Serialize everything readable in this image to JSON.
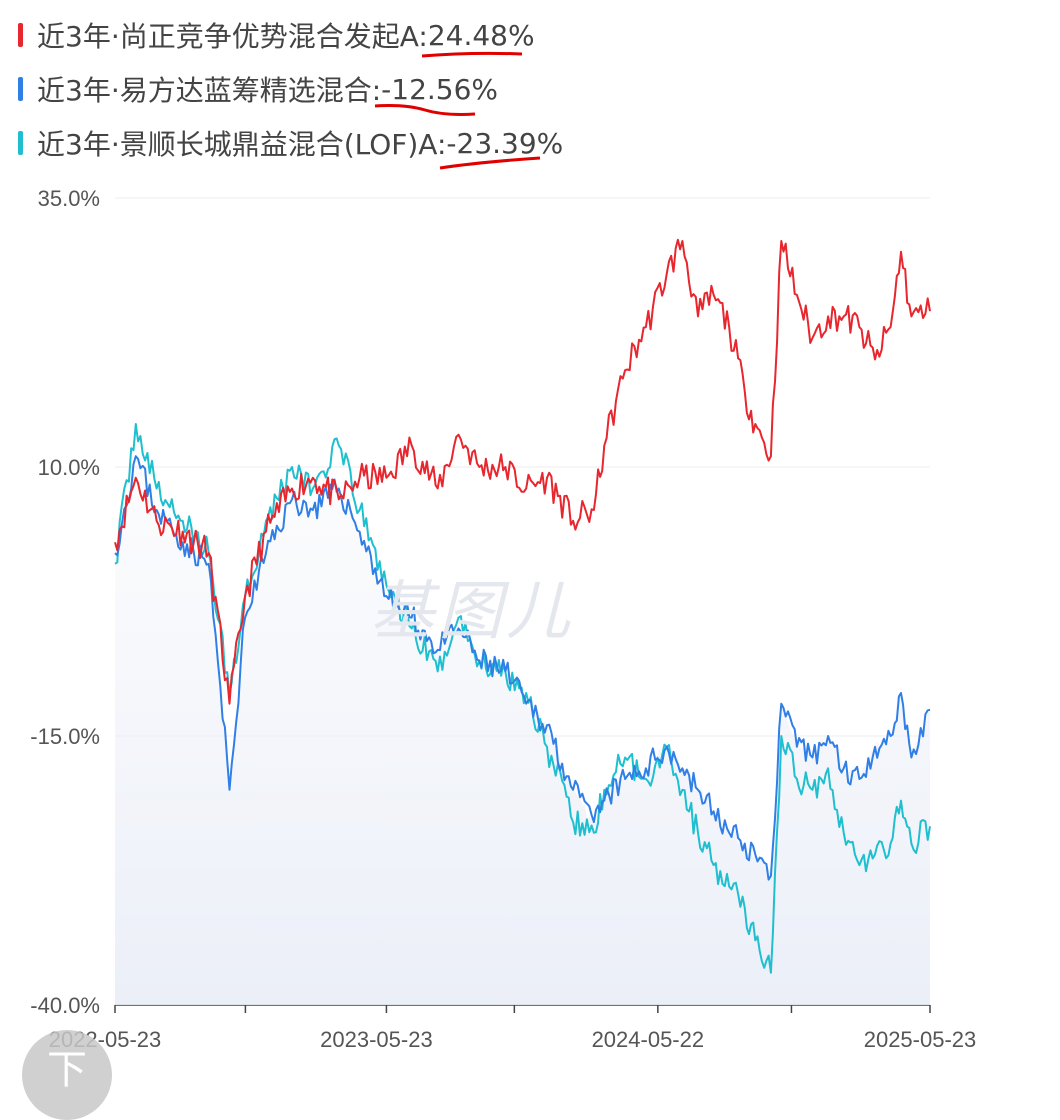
{
  "legend": [
    {
      "label": "近3年·尚正竞争优势混合发起A:",
      "value": "24.48%",
      "color": "#e8262e"
    },
    {
      "label": "近3年·易方达蓝筹精选混合:",
      "value": "-12.56%",
      "color": "#2f7fe6"
    },
    {
      "label": "近3年·景顺长城鼎益混合(LOF)A:",
      "value": "-23.39%",
      "color": "#1fbfcf"
    }
  ],
  "watermark": "基图儿",
  "scroll_button": {
    "glyph": "下"
  },
  "chart_data": {
    "type": "line",
    "ylim": [
      -40,
      35
    ],
    "y_ticks": [
      "35.0%",
      "10.0%",
      "-15.0%",
      "-40.0%"
    ],
    "y_tick_values": [
      35,
      10,
      -15,
      -40
    ],
    "x_range": [
      "2022-05-23",
      "2025-05-23"
    ],
    "x_ticks": [
      "2022-05-23",
      "2023-05-23",
      "2024-05-22",
      "2025-05-23"
    ],
    "grid": true,
    "series": [
      {
        "name": "近3年·尚正竞争优势混合发起A",
        "color": "#e8262e",
        "points": [
          [
            "2022-05-23",
            3
          ],
          [
            "2022-06-20",
            9
          ],
          [
            "2022-07-18",
            5
          ],
          [
            "2022-08-22",
            4
          ],
          [
            "2022-09-26",
            2
          ],
          [
            "2022-10-24",
            -12
          ],
          [
            "2022-11-14",
            -2
          ],
          [
            "2022-12-12",
            4
          ],
          [
            "2023-01-16",
            8
          ],
          [
            "2023-02-13",
            9
          ],
          [
            "2023-03-20",
            7
          ],
          [
            "2023-04-17",
            9
          ],
          [
            "2023-05-23",
            9
          ],
          [
            "2023-06-26",
            12
          ],
          [
            "2023-07-31",
            8
          ],
          [
            "2023-08-28",
            13
          ],
          [
            "2023-09-25",
            10
          ],
          [
            "2023-10-30",
            10
          ],
          [
            "2023-11-27",
            8
          ],
          [
            "2023-12-25",
            9
          ],
          [
            "2024-01-29",
            5
          ],
          [
            "2024-02-26",
            6
          ],
          [
            "2024-03-11",
            12
          ],
          [
            "2024-04-08",
            19
          ],
          [
            "2024-05-06",
            23
          ],
          [
            "2024-06-03",
            28
          ],
          [
            "2024-06-24",
            31
          ],
          [
            "2024-07-15",
            24
          ],
          [
            "2024-08-05",
            26
          ],
          [
            "2024-08-26",
            23
          ],
          [
            "2024-09-16",
            17
          ],
          [
            "2024-09-30",
            14
          ],
          [
            "2024-10-21",
            11
          ],
          [
            "2024-11-04",
            31
          ],
          [
            "2024-11-25",
            26
          ],
          [
            "2024-12-16",
            22
          ],
          [
            "2025-01-06",
            24
          ],
          [
            "2025-01-27",
            24
          ],
          [
            "2025-02-17",
            23
          ],
          [
            "2025-03-10",
            20
          ],
          [
            "2025-03-31",
            23
          ],
          [
            "2025-04-14",
            30
          ],
          [
            "2025-04-28",
            24
          ],
          [
            "2025-05-23",
            24.48
          ]
        ]
      },
      {
        "name": "近3年·易方达蓝筹精选混合",
        "color": "#2f7fe6",
        "points": [
          [
            "2022-05-23",
            2
          ],
          [
            "2022-06-20",
            11
          ],
          [
            "2022-07-18",
            6
          ],
          [
            "2022-08-22",
            3
          ],
          [
            "2022-09-26",
            1
          ],
          [
            "2022-10-24",
            -20
          ],
          [
            "2022-11-14",
            -4
          ],
          [
            "2022-12-12",
            2
          ],
          [
            "2023-01-16",
            7
          ],
          [
            "2023-02-13",
            6
          ],
          [
            "2023-03-20",
            8
          ],
          [
            "2023-04-17",
            4
          ],
          [
            "2023-05-23",
            -2
          ],
          [
            "2023-06-26",
            -4
          ],
          [
            "2023-07-31",
            -7
          ],
          [
            "2023-08-28",
            -5
          ],
          [
            "2023-09-25",
            -8
          ],
          [
            "2023-10-30",
            -9
          ],
          [
            "2023-11-27",
            -12
          ],
          [
            "2023-12-25",
            -14
          ],
          [
            "2024-01-29",
            -20
          ],
          [
            "2024-02-26",
            -23
          ],
          [
            "2024-03-11",
            -21
          ],
          [
            "2024-04-08",
            -19
          ],
          [
            "2024-05-06",
            -18
          ],
          [
            "2024-06-03",
            -16
          ],
          [
            "2024-06-24",
            -18
          ],
          [
            "2024-07-15",
            -20
          ],
          [
            "2024-08-05",
            -22
          ],
          [
            "2024-08-26",
            -24
          ],
          [
            "2024-09-16",
            -25
          ],
          [
            "2024-09-30",
            -26
          ],
          [
            "2024-10-21",
            -28
          ],
          [
            "2024-11-04",
            -12
          ],
          [
            "2024-11-25",
            -16
          ],
          [
            "2024-12-16",
            -17
          ],
          [
            "2025-01-06",
            -15
          ],
          [
            "2025-01-27",
            -18
          ],
          [
            "2025-02-17",
            -19
          ],
          [
            "2025-03-10",
            -16
          ],
          [
            "2025-03-31",
            -15
          ],
          [
            "2025-04-14",
            -11
          ],
          [
            "2025-04-28",
            -17
          ],
          [
            "2025-05-23",
            -12.56
          ]
        ]
      },
      {
        "name": "近3年·景顺长城鼎益混合(LOF)A",
        "color": "#1fbfcf",
        "points": [
          [
            "2022-05-23",
            1
          ],
          [
            "2022-06-20",
            14
          ],
          [
            "2022-07-18",
            8
          ],
          [
            "2022-08-22",
            5
          ],
          [
            "2022-09-26",
            2
          ],
          [
            "2022-10-24",
            -11
          ],
          [
            "2022-11-14",
            -2
          ],
          [
            "2022-12-12",
            5
          ],
          [
            "2023-01-16",
            10
          ],
          [
            "2023-02-13",
            8
          ],
          [
            "2023-03-20",
            12
          ],
          [
            "2023-04-17",
            6
          ],
          [
            "2023-05-23",
            -1
          ],
          [
            "2023-06-26",
            -5
          ],
          [
            "2023-07-31",
            -9
          ],
          [
            "2023-08-28",
            -4
          ],
          [
            "2023-09-25",
            -8
          ],
          [
            "2023-10-30",
            -9
          ],
          [
            "2023-11-27",
            -11
          ],
          [
            "2023-12-25",
            -16
          ],
          [
            "2024-01-29",
            -23
          ],
          [
            "2024-02-26",
            -24
          ],
          [
            "2024-03-11",
            -20
          ],
          [
            "2024-04-08",
            -17
          ],
          [
            "2024-05-06",
            -19
          ],
          [
            "2024-06-03",
            -16
          ],
          [
            "2024-06-24",
            -20
          ],
          [
            "2024-07-15",
            -24
          ],
          [
            "2024-08-05",
            -27
          ],
          [
            "2024-08-26",
            -29
          ],
          [
            "2024-09-16",
            -31
          ],
          [
            "2024-09-30",
            -34
          ],
          [
            "2024-10-21",
            -37
          ],
          [
            "2024-11-04",
            -15
          ],
          [
            "2024-11-25",
            -19
          ],
          [
            "2024-12-16",
            -20
          ],
          [
            "2025-01-06",
            -18
          ],
          [
            "2025-01-27",
            -24
          ],
          [
            "2025-02-17",
            -27
          ],
          [
            "2025-03-10",
            -26
          ],
          [
            "2025-03-31",
            -25
          ],
          [
            "2025-04-14",
            -21
          ],
          [
            "2025-04-28",
            -25
          ],
          [
            "2025-05-23",
            -23.39
          ]
        ]
      }
    ]
  }
}
